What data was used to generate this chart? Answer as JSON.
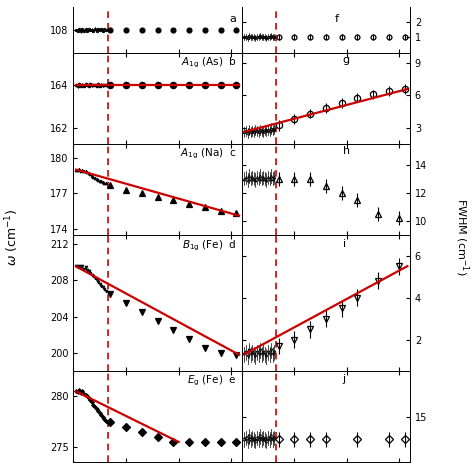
{
  "panels_left": [
    {
      "label": "b",
      "mode_label": "A",
      "mode_sub": "1g",
      "mode_atom": "(As)",
      "ylim": [
        161.3,
        165.5
      ],
      "yticks": [
        162,
        164
      ],
      "ytick_labels": [
        "162",
        "164"
      ],
      "marker": "o",
      "filled": true,
      "freq_x_dense": [
        5,
        8,
        11,
        14,
        17,
        20,
        23,
        26,
        29,
        32,
        35,
        38,
        41,
        44,
        47,
        50,
        53,
        56,
        59,
        62
      ],
      "freq_y_dense": [
        164.0,
        163.95,
        164.05,
        163.98,
        164.02,
        163.97,
        164.03,
        164.0,
        163.96,
        164.04,
        163.99,
        164.01,
        164.0,
        163.97,
        164.03,
        163.98,
        164.02,
        163.99,
        164.01,
        164.0
      ],
      "freq_x_sparse": [
        70,
        100,
        130,
        160,
        190,
        220,
        250,
        280,
        310
      ],
      "freq_y_sparse": [
        164.0,
        164.0,
        164.0,
        164.0,
        164.0,
        164.0,
        164.0,
        164.0,
        164.0
      ],
      "freq_yerr_sparse": [
        0.12,
        0.1,
        0.1,
        0.1,
        0.1,
        0.1,
        0.1,
        0.1,
        0.1
      ],
      "fit_x": [
        5,
        315
      ],
      "fit_y": [
        164.0,
        164.0
      ]
    },
    {
      "label": "c",
      "mode_label": "A",
      "mode_sub": "1g",
      "mode_atom": "(Na)",
      "ylim": [
        173.5,
        181.2
      ],
      "yticks": [
        174,
        177,
        180
      ],
      "ytick_labels": [
        "174",
        "177",
        "180"
      ],
      "marker": "^",
      "filled": true,
      "freq_x_dense": [
        5,
        8,
        11,
        14,
        17,
        20,
        23,
        26,
        29,
        32,
        35,
        38,
        41,
        44,
        47,
        50,
        53,
        56,
        59,
        62
      ],
      "freq_y_dense": [
        179.0,
        178.95,
        179.05,
        178.9,
        179.0,
        178.85,
        178.9,
        178.8,
        178.7,
        178.6,
        178.5,
        178.4,
        178.3,
        178.2,
        178.1,
        178.05,
        178.0,
        177.95,
        177.9,
        177.85
      ],
      "freq_x_sparse": [
        70,
        100,
        130,
        160,
        190,
        220,
        250,
        280,
        310
      ],
      "freq_y_sparse": [
        177.7,
        177.3,
        177.0,
        176.7,
        176.4,
        176.1,
        175.8,
        175.5,
        175.3
      ],
      "freq_yerr_sparse": [
        0.15,
        0.12,
        0.12,
        0.12,
        0.12,
        0.12,
        0.12,
        0.12,
        0.12
      ],
      "fit_x": [
        5,
        315
      ],
      "fit_y": [
        179.0,
        175.1
      ]
    },
    {
      "label": "d",
      "mode_label": "B",
      "mode_sub": "1g",
      "mode_atom": "(Fe)",
      "ylim": [
        198.0,
        213.0
      ],
      "yticks": [
        200,
        204,
        208,
        212
      ],
      "ytick_labels": [
        "200",
        "204",
        "208",
        "212"
      ],
      "marker": "v",
      "filled": true,
      "freq_x_dense": [
        5,
        8,
        11,
        14,
        17,
        20,
        23,
        26,
        29,
        32,
        35,
        38,
        41,
        44,
        47,
        50,
        53,
        56,
        59,
        62
      ],
      "freq_y_dense": [
        209.5,
        209.4,
        209.6,
        209.3,
        209.5,
        209.2,
        209.4,
        209.1,
        209.0,
        208.8,
        208.6,
        208.4,
        208.2,
        208.0,
        207.8,
        207.6,
        207.4,
        207.2,
        207.0,
        206.8
      ],
      "freq_x_sparse": [
        70,
        100,
        130,
        160,
        190,
        220,
        250,
        280,
        310
      ],
      "freq_y_sparse": [
        206.5,
        205.5,
        204.5,
        203.5,
        202.5,
        201.5,
        200.5,
        200.0,
        199.8
      ],
      "freq_yerr_sparse": [
        0.3,
        0.25,
        0.25,
        0.25,
        0.25,
        0.25,
        0.3,
        0.3,
        0.3
      ],
      "fit_x": [
        5,
        315
      ],
      "fit_y": [
        209.5,
        199.8
      ]
    },
    {
      "label": "e",
      "mode_label": "E",
      "mode_sub": "g",
      "mode_atom": "(Fe)",
      "ylim": [
        273.5,
        282.5
      ],
      "yticks": [
        275,
        280
      ],
      "ytick_labels": [
        "275",
        "280"
      ],
      "marker": "D",
      "filled": true,
      "freq_x_dense": [
        5,
        8,
        11,
        14,
        17,
        20,
        23,
        26,
        29,
        32,
        35,
        38,
        41,
        44,
        47,
        50,
        53,
        56,
        59,
        62
      ],
      "freq_y_dense": [
        280.5,
        280.4,
        280.6,
        280.3,
        280.5,
        280.2,
        280.1,
        280.0,
        279.8,
        279.6,
        279.4,
        279.2,
        279.0,
        278.8,
        278.6,
        278.4,
        278.2,
        278.0,
        277.8,
        277.6
      ],
      "freq_x_sparse": [
        70,
        100,
        130,
        160,
        190,
        220,
        250,
        280,
        310
      ],
      "freq_y_sparse": [
        277.5,
        277.0,
        276.5,
        276.0,
        275.5,
        275.5,
        275.5,
        275.5,
        275.5
      ],
      "freq_yerr_sparse": [
        0.3,
        0.25,
        0.25,
        0.25,
        0.3,
        0.3,
        0.3,
        0.3,
        0.3
      ],
      "fit_x": [
        5,
        200
      ],
      "fit_y": [
        280.5,
        275.5
      ]
    }
  ],
  "panels_right": [
    {
      "label": "g",
      "ylim": [
        1.5,
        10.0
      ],
      "yticks": [
        3,
        6,
        9
      ],
      "ytick_labels": [
        "3",
        "6",
        "9"
      ],
      "marker": "o",
      "filled": false,
      "fwhm_x_dense": [
        5,
        8,
        11,
        14,
        17,
        20,
        23,
        26,
        29,
        32,
        35,
        38,
        41,
        44,
        47,
        50,
        53,
        56,
        59,
        62
      ],
      "fwhm_y_dense": [
        2.6,
        2.7,
        2.5,
        2.8,
        2.6,
        2.7,
        2.6,
        2.8,
        2.7,
        2.6,
        2.8,
        2.7,
        2.6,
        2.8,
        2.7,
        2.8,
        2.7,
        2.9,
        2.8,
        2.9
      ],
      "fwhm_x_sparse": [
        70,
        100,
        130,
        160,
        190,
        220,
        250,
        280,
        310
      ],
      "fwhm_y_sparse": [
        3.2,
        3.8,
        4.3,
        4.8,
        5.3,
        5.8,
        6.1,
        6.4,
        6.6
      ],
      "fwhm_yerr_sparse": [
        0.5,
        0.45,
        0.45,
        0.45,
        0.45,
        0.45,
        0.45,
        0.45,
        0.45
      ],
      "fwhm_yerr_dense": 0.8,
      "fit_x": [
        5,
        315
      ],
      "fit_y": [
        2.6,
        6.6
      ],
      "has_fit": true
    },
    {
      "label": "h",
      "ylim": [
        9.0,
        15.5
      ],
      "yticks": [
        10,
        12,
        14
      ],
      "ytick_labels": [
        "10",
        "12",
        "14"
      ],
      "marker": "^",
      "filled": false,
      "fwhm_x_dense": [
        5,
        8,
        11,
        14,
        17,
        20,
        23,
        26,
        29,
        32,
        35,
        38,
        41,
        44,
        47,
        50,
        53,
        56,
        59,
        62
      ],
      "fwhm_y_dense": [
        13.0,
        13.1,
        12.9,
        13.2,
        13.0,
        13.1,
        13.0,
        12.9,
        13.1,
        13.0,
        13.2,
        13.0,
        13.1,
        13.0,
        12.9,
        13.1,
        13.0,
        13.2,
        13.0,
        13.1
      ],
      "fwhm_x_sparse": [
        70,
        100,
        130,
        160,
        190,
        220,
        260,
        300
      ],
      "fwhm_y_sparse": [
        13.0,
        13.0,
        13.0,
        12.5,
        12.0,
        11.5,
        10.5,
        10.2
      ],
      "fwhm_yerr_sparse": [
        0.5,
        0.5,
        0.5,
        0.5,
        0.5,
        0.5,
        0.5,
        0.5
      ],
      "fwhm_yerr_dense": 0.8,
      "fit_x": [],
      "fit_y": [],
      "has_fit": false
    },
    {
      "label": "i",
      "ylim": [
        0.5,
        7.0
      ],
      "yticks": [
        2,
        4,
        6
      ],
      "ytick_labels": [
        "2",
        "4",
        "6"
      ],
      "marker": "v",
      "filled": false,
      "fwhm_x_dense": [
        5,
        8,
        11,
        14,
        17,
        20,
        23,
        26,
        29,
        32,
        35,
        38,
        41,
        44,
        47,
        50,
        53,
        56,
        59,
        62
      ],
      "fwhm_y_dense": [
        1.3,
        1.4,
        1.2,
        1.5,
        1.3,
        1.4,
        1.3,
        1.2,
        1.4,
        1.3,
        1.5,
        1.3,
        1.4,
        1.3,
        1.2,
        1.4,
        1.3,
        1.5,
        1.3,
        1.4
      ],
      "fwhm_x_sparse": [
        70,
        100,
        130,
        160,
        190,
        220,
        260,
        300
      ],
      "fwhm_y_sparse": [
        1.7,
        2.0,
        2.5,
        3.0,
        3.5,
        4.0,
        4.8,
        5.5
      ],
      "fwhm_yerr_sparse": [
        0.4,
        0.4,
        0.4,
        0.4,
        0.4,
        0.4,
        0.4,
        0.4
      ],
      "fwhm_yerr_dense": 0.6,
      "fit_x": [
        5,
        315
      ],
      "fit_y": [
        1.3,
        5.5
      ],
      "has_fit": true
    },
    {
      "label": "j",
      "ylim": [
        12.0,
        18.0
      ],
      "yticks": [
        15
      ],
      "ytick_labels": [
        "15"
      ],
      "marker": "D",
      "filled": false,
      "fwhm_x_dense": [
        5,
        8,
        11,
        14,
        17,
        20,
        23,
        26,
        29,
        32,
        35,
        38,
        41,
        44,
        47,
        50,
        53,
        56,
        59,
        62
      ],
      "fwhm_y_dense": [
        13.5,
        13.6,
        13.4,
        13.7,
        13.5,
        13.6,
        13.5,
        13.4,
        13.6,
        13.5,
        13.7,
        13.5,
        13.6,
        13.5,
        13.4,
        13.6,
        13.5,
        13.7,
        13.5,
        13.6
      ],
      "fwhm_x_sparse": [
        70,
        100,
        130,
        160,
        220,
        280,
        310
      ],
      "fwhm_y_sparse": [
        13.5,
        13.5,
        13.5,
        13.5,
        13.5,
        13.5,
        13.5
      ],
      "fwhm_yerr_sparse": [
        0.5,
        0.5,
        0.5,
        0.5,
        0.5,
        0.5,
        0.5
      ],
      "fwhm_yerr_dense": 0.8,
      "fit_x": [],
      "fit_y": [],
      "has_fit": false
    }
  ],
  "top_panel_left": {
    "label": "a",
    "ylim": [
      107.3,
      108.7
    ],
    "yticks": [
      108
    ],
    "ytick_labels": [
      "108"
    ],
    "marker": "o",
    "filled": true,
    "freq_x_dense": [
      5,
      8,
      11,
      14,
      17,
      20,
      23,
      26,
      29,
      32,
      35,
      38,
      41,
      44,
      47,
      50,
      53,
      56,
      59,
      62
    ],
    "freq_y_dense": [
      108.0,
      107.97,
      108.03,
      107.95,
      108.02,
      107.98,
      108.03,
      107.96,
      108.02,
      107.99,
      108.01,
      107.97,
      108.04,
      107.98,
      108.02,
      107.99,
      108.03,
      107.96,
      108.02,
      107.99
    ],
    "freq_x_sparse": [
      70,
      100,
      130,
      160,
      190,
      220,
      250,
      280,
      310
    ],
    "freq_y_sparse": [
      108.0,
      108.0,
      108.0,
      108.0,
      108.0,
      108.0,
      108.0,
      108.0,
      108.0
    ],
    "freq_yerr_sparse": [
      0.08,
      0.07,
      0.07,
      0.07,
      0.07,
      0.07,
      0.07,
      0.07,
      0.07
    ]
  },
  "top_panel_right": {
    "label": "f",
    "ylim": [
      0.0,
      3.0
    ],
    "yticks": [
      1,
      2
    ],
    "ytick_labels": [
      "1",
      "2"
    ],
    "fwhm_x_dense": [
      5,
      8,
      11,
      14,
      17,
      20,
      23,
      26,
      29,
      32,
      35,
      38,
      41,
      44,
      47,
      50,
      53,
      56,
      59,
      62
    ],
    "fwhm_y_dense": [
      1.0,
      1.05,
      0.95,
      1.1,
      1.0,
      1.05,
      1.0,
      0.95,
      1.05,
      1.0,
      1.1,
      1.0,
      1.05,
      1.0,
      0.95,
      1.05,
      1.0,
      1.1,
      1.0,
      1.05
    ],
    "fwhm_x_sparse": [
      70,
      100,
      130,
      160,
      190,
      220,
      250,
      280,
      310
    ],
    "fwhm_y_sparse": [
      1.0,
      1.0,
      1.0,
      1.0,
      1.0,
      1.0,
      1.0,
      1.0,
      1.0
    ],
    "fwhm_yerr_sparse": [
      0.2,
      0.2,
      0.2,
      0.2,
      0.2,
      0.2,
      0.2,
      0.2,
      0.2
    ],
    "fwhm_yerr_dense": 0.4,
    "marker": "o",
    "filled": false
  },
  "xlim": [
    0,
    320
  ],
  "xticks": [
    0,
    100,
    200,
    300
  ],
  "red_dashed_x": 65,
  "background_color": "#ffffff",
  "fit_color": "#cc0000",
  "dashed_color": "#cc0000",
  "row_heights": [
    1,
    2,
    2,
    3,
    2
  ]
}
